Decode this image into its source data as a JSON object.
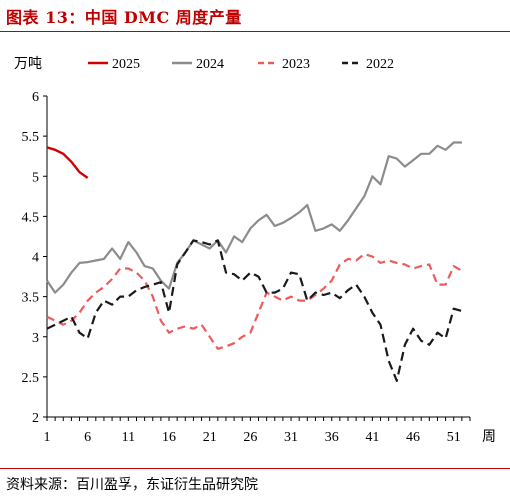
{
  "figure": {
    "title": "图表 13：中国 DMC 周度产量",
    "source": "资料来源：百川盈孚，东证衍生品研究院"
  },
  "chart_data": {
    "type": "line",
    "ylabel": "万吨",
    "xlabel": "周",
    "ylim": [
      2,
      6
    ],
    "yticks": [
      "2",
      "2.5",
      "3",
      "3.5",
      "4",
      "4.5",
      "5",
      "5.5",
      "6"
    ],
    "xlim": [
      1,
      53
    ],
    "xticks": [
      "1",
      "6",
      "11",
      "16",
      "21",
      "26",
      "31",
      "36",
      "41",
      "46",
      "51"
    ],
    "legend_position": "top",
    "grid": false,
    "series": [
      {
        "name": "2025",
        "color": "#d40000",
        "style": "solid",
        "x": [
          1,
          2,
          3,
          4,
          5,
          6
        ],
        "y": [
          5.36,
          5.33,
          5.28,
          5.18,
          5.05,
          4.98
        ]
      },
      {
        "name": "2024",
        "color": "#8c8c8c",
        "style": "solid",
        "x": [
          1,
          2,
          3,
          4,
          5,
          6,
          7,
          8,
          9,
          10,
          11,
          12,
          13,
          14,
          15,
          16,
          17,
          18,
          19,
          20,
          21,
          22,
          23,
          24,
          25,
          26,
          27,
          28,
          29,
          30,
          31,
          32,
          33,
          34,
          35,
          36,
          37,
          38,
          39,
          40,
          41,
          42,
          43,
          44,
          45,
          46,
          47,
          48,
          49,
          50,
          51,
          52
        ],
        "y": [
          3.7,
          3.55,
          3.65,
          3.8,
          3.92,
          3.93,
          3.95,
          3.97,
          4.1,
          3.97,
          4.18,
          4.05,
          3.88,
          3.85,
          3.7,
          3.6,
          3.92,
          4.05,
          4.2,
          4.15,
          4.1,
          4.2,
          4.05,
          4.25,
          4.18,
          4.35,
          4.45,
          4.52,
          4.38,
          4.42,
          4.48,
          4.55,
          4.64,
          4.32,
          4.35,
          4.4,
          4.32,
          4.45,
          4.6,
          4.75,
          5.0,
          4.9,
          5.25,
          5.22,
          5.12,
          5.2,
          5.28,
          5.28,
          5.38,
          5.33,
          5.42,
          5.42
        ]
      },
      {
        "name": "2023",
        "color": "#ef5a5a",
        "style": "dashed",
        "x": [
          1,
          2,
          3,
          4,
          5,
          6,
          7,
          8,
          9,
          10,
          11,
          12,
          13,
          14,
          15,
          16,
          17,
          18,
          19,
          20,
          21,
          22,
          23,
          24,
          25,
          26,
          27,
          28,
          29,
          30,
          31,
          32,
          33,
          34,
          35,
          36,
          37,
          38,
          39,
          40,
          41,
          42,
          43,
          44,
          45,
          46,
          47,
          48,
          49,
          50,
          51,
          52
        ],
        "y": [
          3.25,
          3.2,
          3.15,
          3.2,
          3.3,
          3.45,
          3.55,
          3.62,
          3.72,
          3.85,
          3.85,
          3.8,
          3.7,
          3.5,
          3.2,
          3.05,
          3.1,
          3.13,
          3.1,
          3.15,
          3.0,
          2.85,
          2.88,
          2.92,
          3.0,
          3.05,
          3.3,
          3.55,
          3.5,
          3.45,
          3.5,
          3.45,
          3.45,
          3.52,
          3.6,
          3.7,
          3.9,
          3.97,
          3.95,
          4.03,
          4.0,
          3.92,
          3.95,
          3.92,
          3.9,
          3.85,
          3.88,
          3.9,
          3.65,
          3.65,
          3.88,
          3.82
        ]
      },
      {
        "name": "2022",
        "color": "#1a1a1a",
        "style": "dashed",
        "x": [
          1,
          2,
          3,
          4,
          5,
          6,
          7,
          8,
          9,
          10,
          11,
          12,
          13,
          14,
          15,
          16,
          17,
          18,
          19,
          20,
          21,
          22,
          23,
          24,
          25,
          26,
          27,
          28,
          29,
          30,
          31,
          32,
          33,
          34,
          35,
          36,
          37,
          38,
          39,
          40,
          41,
          42,
          43,
          44,
          45,
          46,
          47,
          48,
          49,
          50,
          51,
          52
        ],
        "y": [
          3.1,
          3.15,
          3.2,
          3.25,
          3.05,
          2.98,
          3.3,
          3.45,
          3.4,
          3.5,
          3.5,
          3.58,
          3.62,
          3.65,
          3.68,
          3.3,
          3.9,
          4.05,
          4.2,
          4.18,
          4.15,
          4.2,
          3.8,
          3.78,
          3.7,
          3.8,
          3.75,
          3.55,
          3.55,
          3.6,
          3.8,
          3.78,
          3.45,
          3.55,
          3.52,
          3.55,
          3.48,
          3.58,
          3.65,
          3.5,
          3.3,
          3.15,
          2.7,
          2.45,
          2.9,
          3.1,
          2.95,
          2.9,
          3.05,
          2.98,
          3.35,
          3.32
        ]
      }
    ]
  }
}
